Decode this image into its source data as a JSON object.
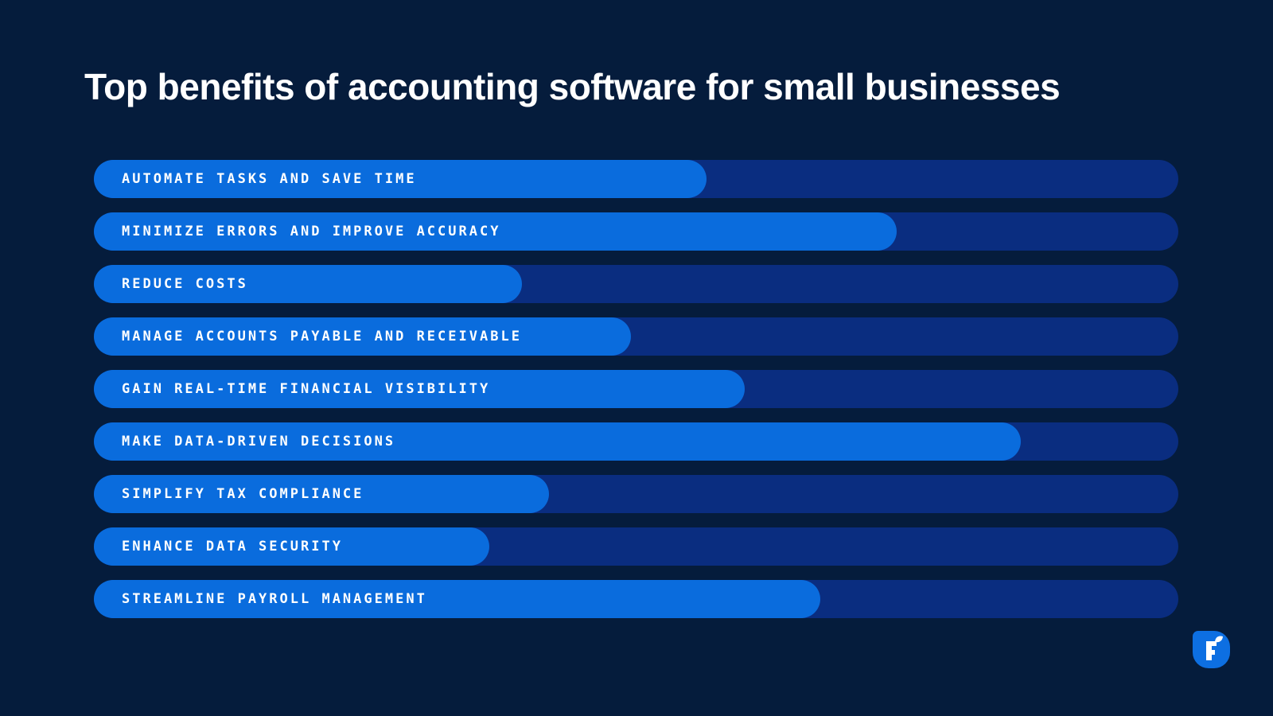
{
  "title": "Top benefits of accounting software for small businesses",
  "colors": {
    "background": "#051C3C",
    "bar_track": "#0A2D80",
    "bar_fill": "#0A6CDD",
    "text": "#FFFFFF",
    "logo_blue": "#0D6FE2",
    "logo_glyph": "#FFFFFF"
  },
  "chart_data": {
    "type": "bar",
    "orientation": "horizontal",
    "title": "Top benefits of accounting software for small businesses",
    "categories": [
      "AUTOMATE TASKS AND SAVE TIME",
      "MINIMIZE ERRORS AND IMPROVE ACCURACY",
      "REDUCE COSTS",
      "MANAGE ACCOUNTS PAYABLE AND RECEIVABLE",
      "GAIN REAL-TIME FINANCIAL VISIBILITY",
      "MAKE DATA-DRIVEN DECISIONS",
      "SIMPLIFY TAX COMPLIANCE",
      "ENHANCE DATA SECURITY",
      "STREAMLINE PAYROLL MANAGEMENT"
    ],
    "values": [
      56.5,
      74,
      39.5,
      49.5,
      60,
      85.5,
      42,
      36.5,
      67
    ],
    "xlabel": "",
    "ylabel": "",
    "xlim": [
      0,
      100
    ],
    "value_format": "estimated bar length, % of full track (no numeric labels shown in image)",
    "grid": false,
    "legend": false,
    "labels_inside_bars": true
  },
  "logo": {
    "letter": "F"
  }
}
